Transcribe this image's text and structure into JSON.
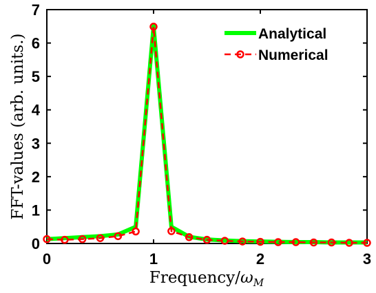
{
  "chart_data": {
    "type": "line",
    "xlabel": "Frequency/",
    "xlabel_symbol": "ω",
    "xlabel_subscript": "M",
    "ylabel": "FFT-values (arb. units.)",
    "xlim": [
      0,
      3
    ],
    "ylim": [
      0,
      7
    ],
    "xticks": [
      "0",
      "1",
      "2",
      "3"
    ],
    "yticks": [
      "0",
      "1",
      "2",
      "3",
      "4",
      "5",
      "6",
      "7"
    ],
    "grid": false,
    "legend_position": "top-right",
    "x": [
      0,
      0.167,
      0.333,
      0.5,
      0.667,
      0.833,
      1.0,
      1.167,
      1.333,
      1.5,
      1.667,
      1.833,
      2.0,
      2.167,
      2.333,
      2.5,
      2.667,
      2.833,
      3.0
    ],
    "series": [
      {
        "name": "Analytical",
        "color": "#00ff00",
        "style": "solid",
        "values": [
          0.13,
          0.16,
          0.19,
          0.22,
          0.27,
          0.5,
          6.5,
          0.5,
          0.2,
          0.12,
          0.09,
          0.07,
          0.06,
          0.05,
          0.04,
          0.04,
          0.03,
          0.03,
          0.03
        ]
      },
      {
        "name": "Numerical",
        "color": "#ff0000",
        "style": "dashed",
        "marker": "circle",
        "values": [
          0.13,
          0.11,
          0.13,
          0.16,
          0.22,
          0.36,
          6.49,
          0.37,
          0.19,
          0.11,
          0.08,
          0.06,
          0.05,
          0.04,
          0.04,
          0.03,
          0.03,
          0.02,
          0.02
        ]
      }
    ]
  }
}
